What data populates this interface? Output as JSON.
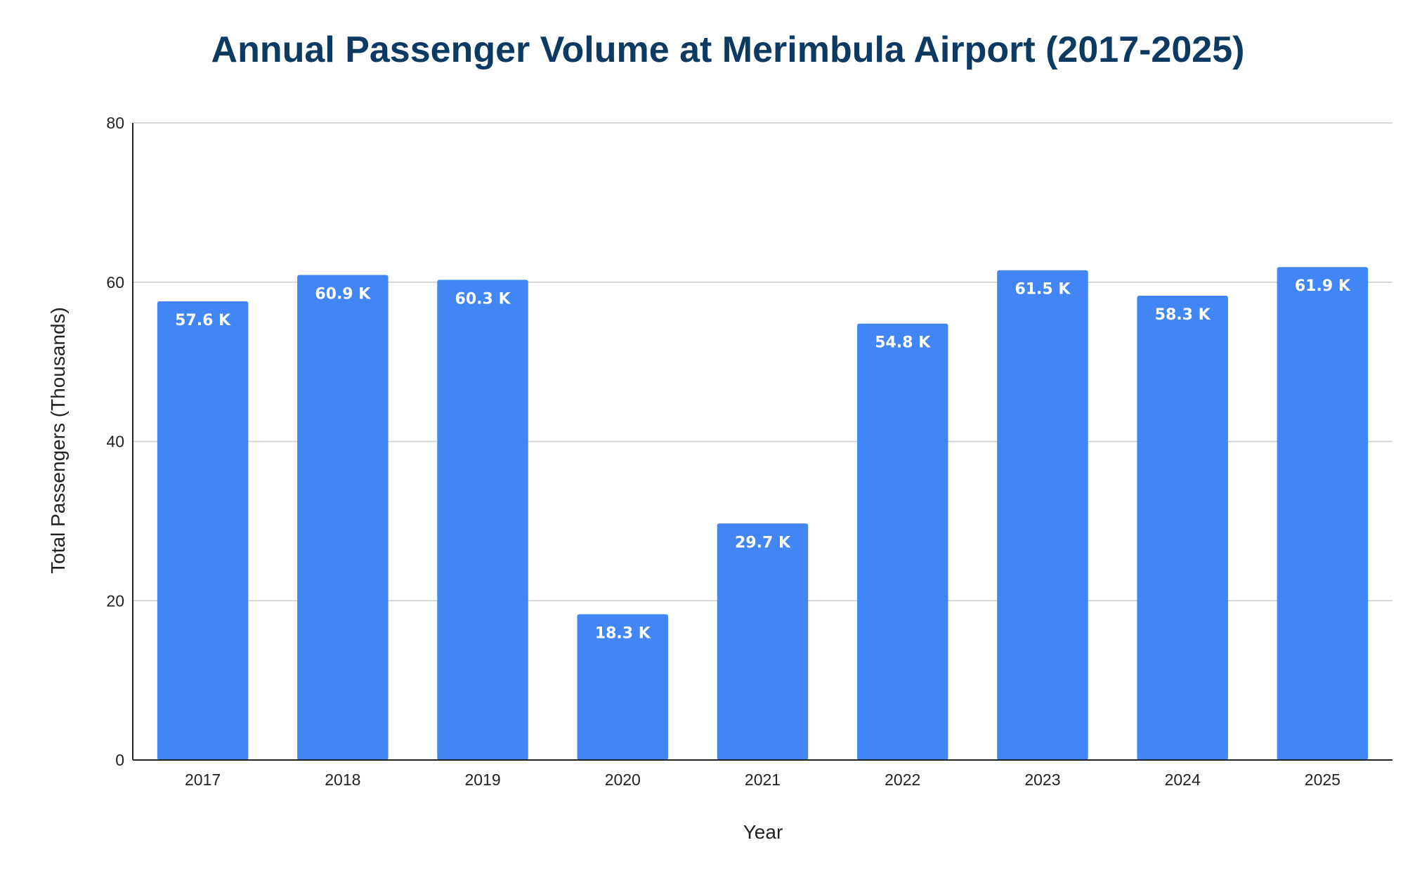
{
  "chart_data": {
    "type": "bar",
    "title": "Annual Passenger Volume at Merimbula Airport (2017-2025)",
    "xlabel": "Year",
    "ylabel": "Total Passengers (Thousands)",
    "categories": [
      "2017",
      "2018",
      "2019",
      "2020",
      "2021",
      "2022",
      "2023",
      "2024",
      "2025"
    ],
    "values": [
      57.6,
      60.9,
      60.3,
      18.3,
      29.7,
      54.8,
      61.5,
      58.3,
      61.9
    ],
    "data_labels": [
      "57.6 K",
      "60.9 K",
      "60.3 K",
      "18.3 K",
      "29.7 K",
      "54.8 K",
      "61.5 K",
      "58.3 K",
      "61.9 K"
    ],
    "ylim": [
      0,
      80
    ],
    "yticks": [
      0,
      20,
      40,
      60,
      80
    ],
    "ytick_labels": [
      "0",
      "20",
      "40",
      "60",
      "80"
    ],
    "grid": true,
    "legend": "none",
    "colors": {
      "bar": "#4285f4",
      "title": "#0d3a63"
    }
  }
}
